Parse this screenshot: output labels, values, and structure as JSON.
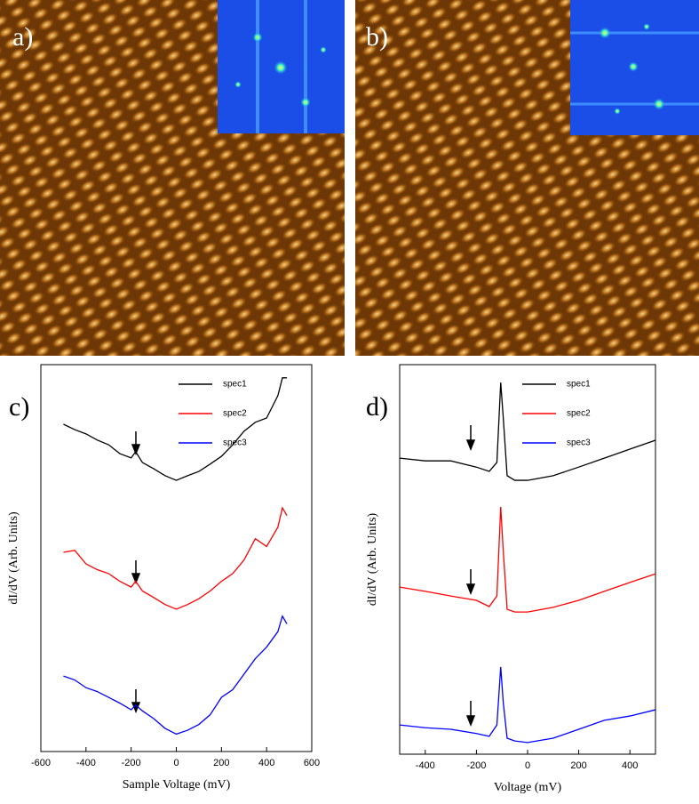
{
  "image_labels": [
    "a)",
    "b)"
  ],
  "chart_data": [
    {
      "type": "line",
      "panel_label": "c)",
      "xlabel": "Sample Voltage (mV)",
      "ylabel": "dI/dV (Arb. Units)",
      "x": [
        -500,
        -450,
        -400,
        -350,
        -300,
        -250,
        -200,
        -180,
        -150,
        -100,
        -50,
        0,
        50,
        100,
        150,
        200,
        250,
        300,
        350,
        400,
        450,
        470,
        490
      ],
      "series": [
        {
          "name": "spec1",
          "color": "#000000",
          "values": [
            84.6,
            83.2,
            82.1,
            80.5,
            79.3,
            77.0,
            75.9,
            77.5,
            74.7,
            73.1,
            71.3,
            70.1,
            71.3,
            72.4,
            74.3,
            76.3,
            79.3,
            82.8,
            85.1,
            86.2,
            92.0,
            96.6,
            96.6
          ]
        },
        {
          "name": "spec2",
          "color": "#ff0000",
          "values": [
            51.5,
            52,
            48.5,
            47,
            46,
            44,
            42.5,
            44,
            41.5,
            39.8,
            38,
            36.8,
            38,
            39.5,
            41.5,
            44,
            46,
            49.5,
            55,
            53,
            58,
            63,
            61
          ]
        },
        {
          "name": "spec3",
          "color": "#0000ff",
          "values": [
            19.5,
            18.5,
            16.5,
            15.5,
            14,
            12.5,
            10.8,
            12,
            10.5,
            8.5,
            6,
            4.5,
            5.5,
            7,
            9.5,
            14,
            16,
            20,
            24,
            27,
            31,
            35,
            33
          ]
        }
      ],
      "xlim": [
        -600,
        600
      ],
      "xticks": [
        -600,
        -400,
        -200,
        0,
        200,
        400,
        600
      ],
      "ylim": [
        0,
        100
      ],
      "legend": "top-right"
    },
    {
      "type": "line",
      "panel_label": "d)",
      "xlabel": "Voltage (mV)",
      "ylabel": "dI/dV (Arb. Units)",
      "x": [
        -500,
        -400,
        -300,
        -200,
        -150,
        -120,
        -105,
        -95,
        -80,
        -50,
        0,
        100,
        200,
        300,
        400,
        500
      ],
      "series": [
        {
          "name": "spec1",
          "color": "#000000",
          "values": [
            76.0,
            75.3,
            75.3,
            73.7,
            72.6,
            74.9,
            95.4,
            86.3,
            71.5,
            70.3,
            70.3,
            71.5,
            73.7,
            76.0,
            78.3,
            80.6
          ]
        },
        {
          "name": "spec2",
          "color": "#ff0000",
          "values": [
            42.9,
            41.8,
            40.6,
            39.5,
            37.9,
            40.6,
            63.5,
            52.1,
            37.2,
            36.5,
            36.5,
            37.7,
            39.5,
            41.8,
            44.1,
            46.3
          ]
        },
        {
          "name": "spec3",
          "color": "#0000ff",
          "values": [
            7.5,
            6.8,
            6.4,
            5.3,
            4.6,
            7.5,
            22.4,
            13.2,
            4.1,
            3.4,
            3.0,
            4.1,
            6.4,
            8.7,
            9.8,
            11.4
          ]
        }
      ],
      "xlim": [
        -500,
        500
      ],
      "xticks": [
        -400,
        -200,
        0,
        200,
        400
      ],
      "ylim": [
        0,
        100
      ],
      "legend": "top-right"
    }
  ]
}
